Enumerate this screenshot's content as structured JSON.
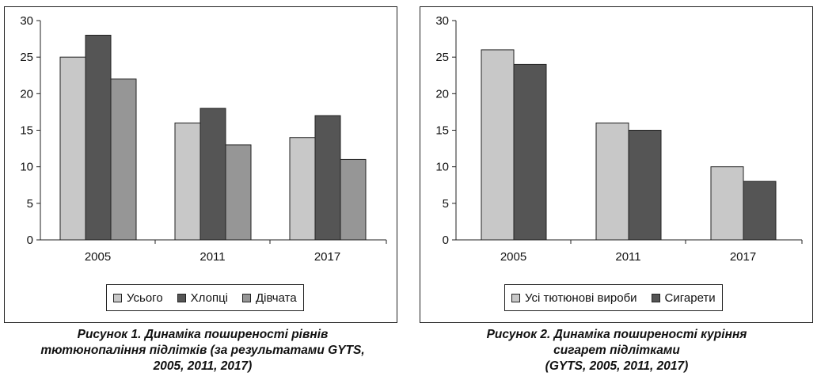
{
  "charts": [
    {
      "legend": [
        {
          "label": "Усього",
          "color": "#c8c8c8"
        },
        {
          "label": "Хлопці",
          "color": "#555555"
        },
        {
          "label": "Дівчата",
          "color": "#969696"
        }
      ],
      "caption_lines": [
        "Рисунок 1. Динаміка поширеності рівнів",
        "тютюнопаління підлітків (за результатами GYTS,",
        "2005, 2011, 2017)"
      ]
    },
    {
      "legend": [
        {
          "label": "Усі тютюнові вироби",
          "color": "#c8c8c8"
        },
        {
          "label": "Сигарети",
          "color": "#555555"
        }
      ],
      "caption_lines": [
        "Рисунок 2. Динаміка поширеності куріння",
        "сигарет підлітками",
        "(GYTS, 2005, 2011, 2017)"
      ]
    }
  ],
  "chart_data": [
    {
      "type": "bar",
      "categories": [
        "2005",
        "2011",
        "2017"
      ],
      "series": [
        {
          "name": "Усього",
          "values": [
            25,
            16,
            14
          ],
          "color": "#c8c8c8"
        },
        {
          "name": "Хлопці",
          "values": [
            28,
            18,
            17
          ],
          "color": "#555555"
        },
        {
          "name": "Дівчата",
          "values": [
            22,
            13,
            11
          ],
          "color": "#969696"
        }
      ],
      "yticks": [
        "0",
        "5",
        "10",
        "15",
        "20",
        "25",
        "30"
      ],
      "ylim": [
        0,
        30
      ],
      "grid": false,
      "legend_position": "bottom",
      "title": "Рисунок 1. Динаміка поширеності рівнів тютюнопаління підлітків (за результатами GYTS, 2005, 2011, 2017)"
    },
    {
      "type": "bar",
      "categories": [
        "2005",
        "2011",
        "2017"
      ],
      "series": [
        {
          "name": "Усі тютюнові вироби",
          "values": [
            26,
            16,
            10
          ],
          "color": "#c8c8c8"
        },
        {
          "name": "Сигарети",
          "values": [
            24,
            15,
            8
          ],
          "color": "#555555"
        }
      ],
      "yticks": [
        "0",
        "5",
        "10",
        "15",
        "20",
        "25",
        "30"
      ],
      "ylim": [
        0,
        30
      ],
      "grid": false,
      "legend_position": "bottom",
      "title": "Рисунок 2. Динаміка поширеності куріння сигарет підлітками (GYTS, 2005, 2011, 2017)"
    }
  ]
}
